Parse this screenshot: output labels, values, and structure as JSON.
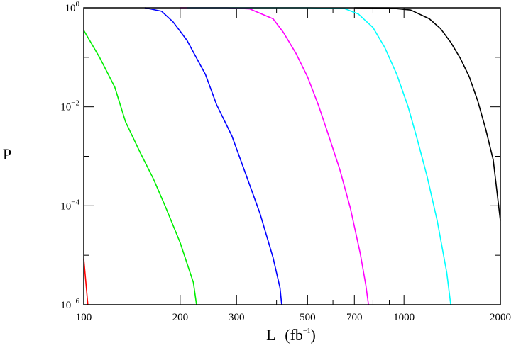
{
  "chart_data": {
    "type": "line",
    "title": "",
    "xlabel": {
      "main": "L",
      "unit_base": "(fb",
      "unit_exp": "−1",
      "unit_close": ")"
    },
    "ylabel": "P",
    "x_scale": "log",
    "y_scale": "log",
    "xlim": [
      100,
      2000
    ],
    "ylim": [
      1e-06,
      1
    ],
    "x_ticks": [
      {
        "value": 100,
        "label": "100"
      },
      {
        "value": 200,
        "label": "200"
      },
      {
        "value": 300,
        "label": "300"
      },
      {
        "value": 500,
        "label": "500"
      },
      {
        "value": 700,
        "label": "700"
      },
      {
        "value": 1000,
        "label": "1000"
      },
      {
        "value": 2000,
        "label": "2000"
      }
    ],
    "y_ticks": [
      {
        "value": 1,
        "base": "10",
        "exp": "0"
      },
      {
        "value": 0.01,
        "base": "10",
        "exp": "−2"
      },
      {
        "value": 0.0001,
        "base": "10",
        "exp": "−4"
      },
      {
        "value": 1e-06,
        "base": "10",
        "exp": "−6"
      }
    ],
    "grid": false,
    "series": [
      {
        "color": "#ff0000",
        "points": [
          [
            100,
            8.5e-06
          ],
          [
            103,
            1e-06
          ]
        ]
      },
      {
        "color": "#00ee00",
        "points": [
          [
            100,
            0.35
          ],
          [
            112,
            0.1
          ],
          [
            125,
            0.025
          ],
          [
            135,
            0.005
          ],
          [
            150,
            0.0012
          ],
          [
            165,
            0.00035
          ],
          [
            180,
            9.5e-05
          ],
          [
            200,
            1.8e-05
          ],
          [
            220,
            2.8e-06
          ],
          [
            225,
            1e-06
          ]
        ]
      },
      {
        "color": "#0000ff",
        "points": [
          [
            155,
            1
          ],
          [
            175,
            0.85
          ],
          [
            190,
            0.52
          ],
          [
            210,
            0.22
          ],
          [
            240,
            0.045
          ],
          [
            260,
            0.011
          ],
          [
            290,
            0.0026
          ],
          [
            320,
            0.00045
          ],
          [
            355,
            7e-05
          ],
          [
            390,
            9e-06
          ],
          [
            410,
            2.2e-06
          ],
          [
            415,
            1e-06
          ]
        ]
      },
      {
        "color": "#ff00ff",
        "points": [
          [
            200,
            1
          ],
          [
            280,
            1
          ],
          [
            330,
            0.95
          ],
          [
            390,
            0.6
          ],
          [
            420,
            0.32
          ],
          [
            460,
            0.12
          ],
          [
            500,
            0.04
          ],
          [
            540,
            0.011
          ],
          [
            580,
            0.0028
          ],
          [
            630,
            0.00055
          ],
          [
            680,
            9e-05
          ],
          [
            730,
            1.1e-05
          ],
          [
            760,
            2.5e-06
          ],
          [
            775,
            1e-06
          ]
        ]
      },
      {
        "color": "#00ffff",
        "points": [
          [
            210,
            1
          ],
          [
            500,
            1
          ],
          [
            650,
            0.97
          ],
          [
            720,
            0.75
          ],
          [
            800,
            0.4
          ],
          [
            870,
            0.16
          ],
          [
            950,
            0.045
          ],
          [
            1030,
            0.01
          ],
          [
            1100,
            0.0022
          ],
          [
            1180,
            0.0004
          ],
          [
            1270,
            5e-05
          ],
          [
            1360,
            4.5e-06
          ],
          [
            1400,
            1e-06
          ]
        ]
      },
      {
        "color": "#000000",
        "points": [
          [
            700,
            1
          ],
          [
            900,
            0.995
          ],
          [
            1050,
            0.9
          ],
          [
            1200,
            0.6
          ],
          [
            1300,
            0.38
          ],
          [
            1400,
            0.2
          ],
          [
            1500,
            0.095
          ],
          [
            1600,
            0.04
          ],
          [
            1700,
            0.013
          ],
          [
            1800,
            0.0035
          ],
          [
            1900,
            0.00085
          ],
          [
            2000,
            5e-05
          ]
        ]
      }
    ]
  }
}
